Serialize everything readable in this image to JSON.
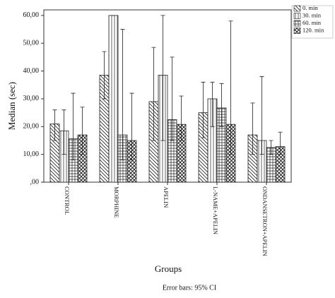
{
  "chart_data": {
    "type": "bar",
    "y_label": "Median (sec)",
    "x_label": "Groups",
    "note": "Error bars: 95% CI",
    "categories": [
      "CONTROL",
      "MORPHINE",
      "APELIN",
      "L-NAME+APELIN",
      "ONDANSETRON+APELIN"
    ],
    "series": [
      {
        "name": "0. min",
        "pattern": "diagonal",
        "values": [
          21,
          38.5,
          29,
          25,
          17
        ],
        "ci_low": [
          15,
          30,
          15,
          16,
          10
        ],
        "ci_high": [
          26,
          47,
          48.5,
          36,
          28.5
        ]
      },
      {
        "name": "30. min",
        "pattern": "vertical",
        "values": [
          18.5,
          60,
          38.5,
          30,
          15
        ],
        "ci_low": [
          10,
          60,
          15,
          20,
          10
        ],
        "ci_high": [
          26,
          60,
          60,
          36,
          38
        ]
      },
      {
        "name": "60. min",
        "pattern": "grid",
        "values": [
          15.6,
          17,
          22.5,
          26.7,
          12.5
        ],
        "ci_low": [
          8,
          8,
          15,
          20,
          10
        ],
        "ci_high": [
          32,
          55,
          45,
          35.5,
          15
        ]
      },
      {
        "name": "120. min",
        "pattern": "diamond",
        "values": [
          17,
          15,
          20.8,
          20.8,
          12.8
        ],
        "ci_low": [
          10,
          8,
          15,
          10,
          10
        ],
        "ci_high": [
          27,
          32,
          31,
          58,
          18
        ]
      }
    ],
    "ylim": [
      0,
      62
    ],
    "yticks": [
      {
        "value": 0,
        "label": ",00"
      },
      {
        "value": 10,
        "label": "10,00"
      },
      {
        "value": 20,
        "label": "20,00"
      },
      {
        "value": 30,
        "label": "30,00"
      },
      {
        "value": 40,
        "label": "40,00"
      },
      {
        "value": 50,
        "label": "50,00"
      },
      {
        "value": 60,
        "label": "60,00"
      }
    ],
    "legend": "top-right"
  }
}
